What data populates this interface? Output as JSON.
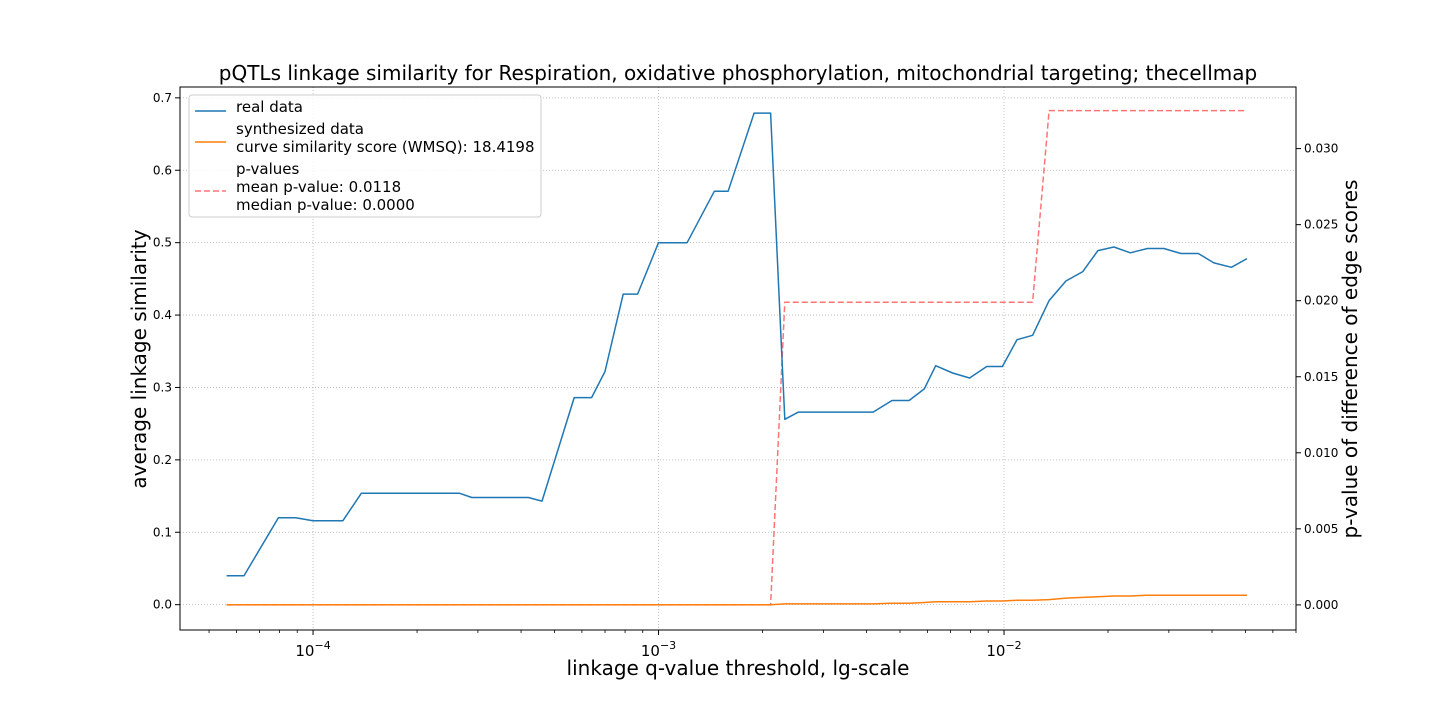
{
  "chart_data": {
    "type": "line",
    "title": "pQTLs linkage similarity for Respiration, oxidative phosphorylation, mitochondrial targeting; thecellmap",
    "xlabel": "linkage q-value threshold, lg-scale",
    "ylabel": "average linkage similarity",
    "ylabel_right": "p-value of difference of edge scores",
    "xscale": "log",
    "xlim": [
      4.12e-05,
      0.07
    ],
    "ylim": [
      -0.035,
      0.715
    ],
    "ylim_right": [
      -0.00165,
      0.03405
    ],
    "grid": true,
    "legend_position": "top-left",
    "x_ticks": [
      {
        "value": 0.0001,
        "base": "10",
        "exp": "−4"
      },
      {
        "value": 0.001,
        "base": "10",
        "exp": "−3"
      },
      {
        "value": 0.01,
        "base": "10",
        "exp": "−2"
      }
    ],
    "y_ticks": [
      "0.0",
      "0.1",
      "0.2",
      "0.3",
      "0.4",
      "0.5",
      "0.6",
      "0.7"
    ],
    "y_ticks_right": [
      "0.000",
      "0.005",
      "0.010",
      "0.015",
      "0.020",
      "0.025",
      "0.030"
    ],
    "series": [
      {
        "name": "real data",
        "axis": "left",
        "color": "#1f77b4",
        "style": "solid",
        "x": [
          5.62e-05,
          6.31e-05,
          7.94e-05,
          8.91e-05,
          0.0001,
          0.000122,
          0.000138,
          0.00016,
          0.0002,
          0.000265,
          0.000288,
          0.00035,
          0.00042,
          0.00046,
          0.00057,
          0.00064,
          0.0007,
          0.00079,
          0.00087,
          0.001,
          0.00121,
          0.00145,
          0.00159,
          0.00189,
          0.00211,
          0.00232,
          0.00254,
          0.0029,
          0.0033,
          0.0037,
          0.00418,
          0.00474,
          0.00531,
          0.00588,
          0.00634,
          0.0071,
          0.00795,
          0.00891,
          0.00989,
          0.0109,
          0.0121,
          0.0135,
          0.0151,
          0.0169,
          0.0187,
          0.0208,
          0.0232,
          0.026,
          0.029,
          0.0325,
          0.0365,
          0.0405,
          0.0455,
          0.0505
        ],
        "y": [
          0.04,
          0.04,
          0.12,
          0.12,
          0.116,
          0.116,
          0.154,
          0.154,
          0.154,
          0.154,
          0.148,
          0.148,
          0.148,
          0.143,
          0.286,
          0.286,
          0.322,
          0.429,
          0.429,
          0.5,
          0.5,
          0.571,
          0.571,
          0.679,
          0.679,
          0.256,
          0.266,
          0.266,
          0.266,
          0.266,
          0.266,
          0.282,
          0.282,
          0.298,
          0.33,
          0.32,
          0.313,
          0.329,
          0.329,
          0.366,
          0.372,
          0.42,
          0.447,
          0.46,
          0.489,
          0.494,
          0.486,
          0.492,
          0.492,
          0.485,
          0.485,
          0.472,
          0.466,
          0.478
        ]
      },
      {
        "name": "synthesized data\ncurve similarity score (WMSQ): 18.4198",
        "axis": "left",
        "color": "#ff7f0e",
        "style": "solid",
        "x": [
          5.62e-05,
          0.00211,
          0.00232,
          0.00418,
          0.00474,
          0.00531,
          0.00588,
          0.00634,
          0.00795,
          0.00891,
          0.00989,
          0.0109,
          0.0121,
          0.0135,
          0.0151,
          0.0169,
          0.0187,
          0.0208,
          0.0232,
          0.026,
          0.0505
        ],
        "y": [
          0.0,
          0.0,
          0.001,
          0.001,
          0.002,
          0.002,
          0.003,
          0.004,
          0.004,
          0.005,
          0.005,
          0.006,
          0.006,
          0.007,
          0.009,
          0.01,
          0.011,
          0.012,
          0.012,
          0.013,
          0.013
        ]
      },
      {
        "name": "p-values\nmean p-value: 0.0118\nmedian p-value: 0.0000",
        "axis": "right",
        "color": "#ff7575",
        "style": "dashed",
        "x": [
          5.62e-05,
          0.00211,
          0.00232,
          0.0121,
          0.0135,
          0.0505
        ],
        "y": [
          0.0,
          0.0,
          0.0199,
          0.0199,
          0.0325,
          0.0325
        ]
      }
    ]
  }
}
